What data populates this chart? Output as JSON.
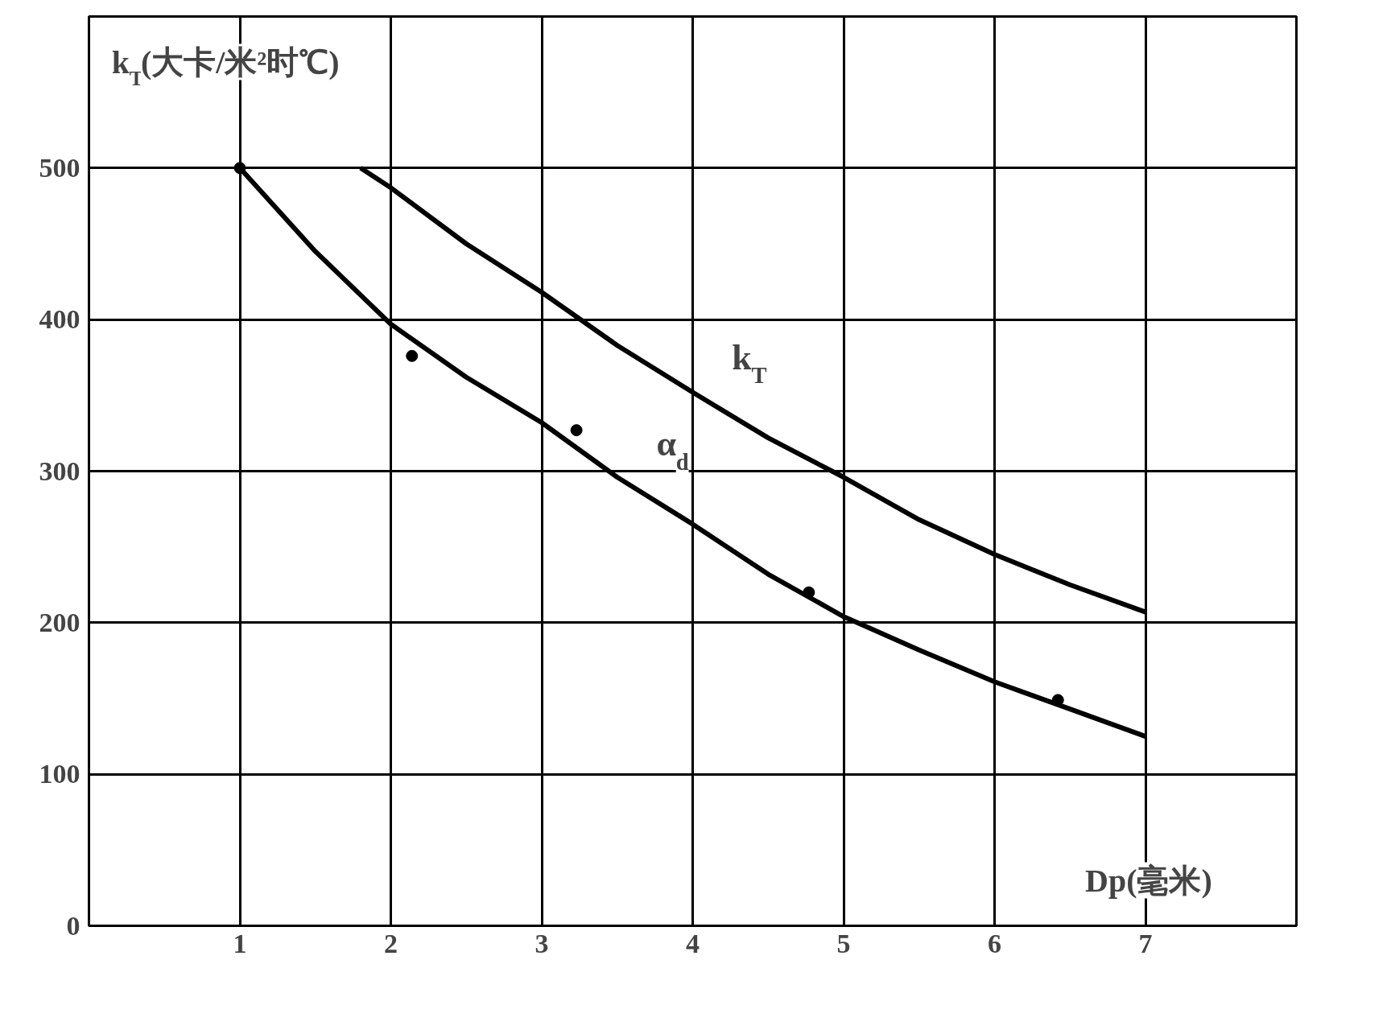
{
  "chart_data": {
    "type": "line",
    "xlabel": "Dp(毫米)",
    "ylabel": "k$_{T}$(大卡/米²时℃)",
    "xlim": [
      0,
      8
    ],
    "ylim": [
      0,
      600
    ],
    "xticks": [
      1,
      2,
      3,
      4,
      5,
      6,
      7
    ],
    "yticks": [
      0,
      100,
      200,
      300,
      400,
      500
    ],
    "grid": true,
    "marker": "none",
    "line_style": "solid",
    "series": [
      {
        "name": "k$_{T}$",
        "color": "#000000",
        "x": [
          1.8,
          2,
          2.5,
          3,
          3.5,
          4,
          4.5,
          5,
          5.5,
          6,
          6.5,
          7
        ],
        "values": [
          500,
          487,
          450,
          418,
          383,
          352,
          322,
          296,
          268,
          245,
          225,
          207
        ]
      },
      {
        "name": "α$_{d}$",
        "color": "#000000",
        "x": [
          1,
          1.5,
          2,
          2.5,
          3,
          3.5,
          4,
          4.5,
          5,
          5.5,
          6,
          6.5,
          7
        ],
        "values": [
          500,
          445,
          397,
          362,
          332,
          296,
          265,
          232,
          204,
          182,
          161,
          143,
          125
        ]
      },
      {
        "type": "scatter",
        "marker": "circle",
        "color": "#000000",
        "x": [
          1,
          2.14,
          3.23,
          4.77,
          6.42
        ],
        "values": [
          500,
          376,
          327,
          220,
          149
        ]
      }
    ]
  }
}
